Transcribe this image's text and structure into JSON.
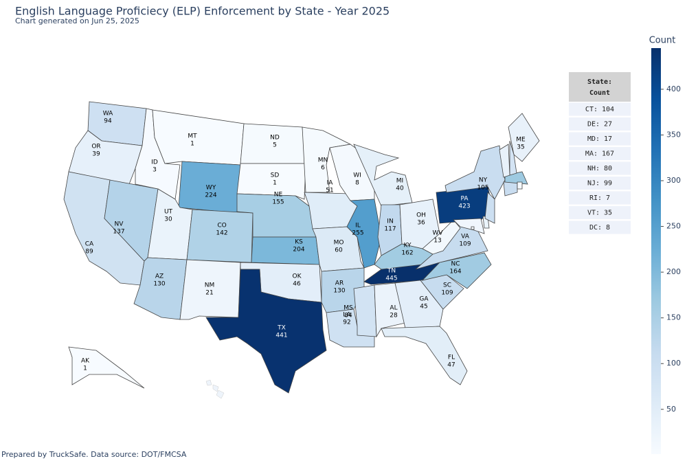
{
  "chart_data": {
    "type": "choropleth",
    "title": "English Language Proficiecy (ELP) Enforcement by State - Year 2025",
    "subtitle": "Chart generated on Jun 25, 2025",
    "locations": [
      "WA",
      "OR",
      "CA",
      "NV",
      "ID",
      "MT",
      "WY",
      "UT",
      "AZ",
      "CO",
      "NM",
      "ND",
      "SD",
      "NE",
      "KS",
      "OK",
      "TX",
      "MN",
      "IA",
      "MO",
      "AR",
      "LA",
      "WI",
      "IL",
      "MI",
      "IN",
      "OH",
      "KY",
      "TN",
      "MS",
      "AL",
      "GA",
      "FL",
      "SC",
      "NC",
      "VA",
      "WV",
      "PA",
      "NY",
      "ME",
      "AK",
      "CT",
      "DE",
      "MD",
      "MA",
      "NH",
      "NJ",
      "RI",
      "VT",
      "DC"
    ],
    "values": [
      94,
      39,
      89,
      137,
      3,
      1,
      224,
      30,
      130,
      142,
      21,
      5,
      1,
      155,
      204,
      46,
      441,
      6,
      51,
      60,
      130,
      92,
      8,
      255,
      40,
      117,
      36,
      162,
      445,
      84,
      28,
      45,
      47,
      109,
      164,
      109,
      13,
      423,
      105,
      35,
      1,
      104,
      27,
      17,
      167,
      80,
      99,
      7,
      35,
      8
    ],
    "colorscale": [
      "#f7fbff",
      "#deebf7",
      "#c6dbef",
      "#9ecae1",
      "#6baed6",
      "#4292c6",
      "#2171b5",
      "#08519c",
      "#08306b"
    ],
    "colorbar": {
      "title": "Count",
      "range": [
        1,
        445
      ],
      "ticks": [
        50,
        100,
        150,
        200,
        250,
        300,
        350,
        400
      ]
    },
    "table": {
      "header": [
        "State:",
        "Count"
      ],
      "rows": [
        "CT: 104",
        "DE: 27",
        "MD: 17",
        "MA: 167",
        "NH: 80",
        "NJ: 99",
        "RI: 7",
        "VT: 35",
        "DC: 8"
      ]
    },
    "footer": "Prepared by TruckSafe. Data source: DOT/FMCSA"
  }
}
